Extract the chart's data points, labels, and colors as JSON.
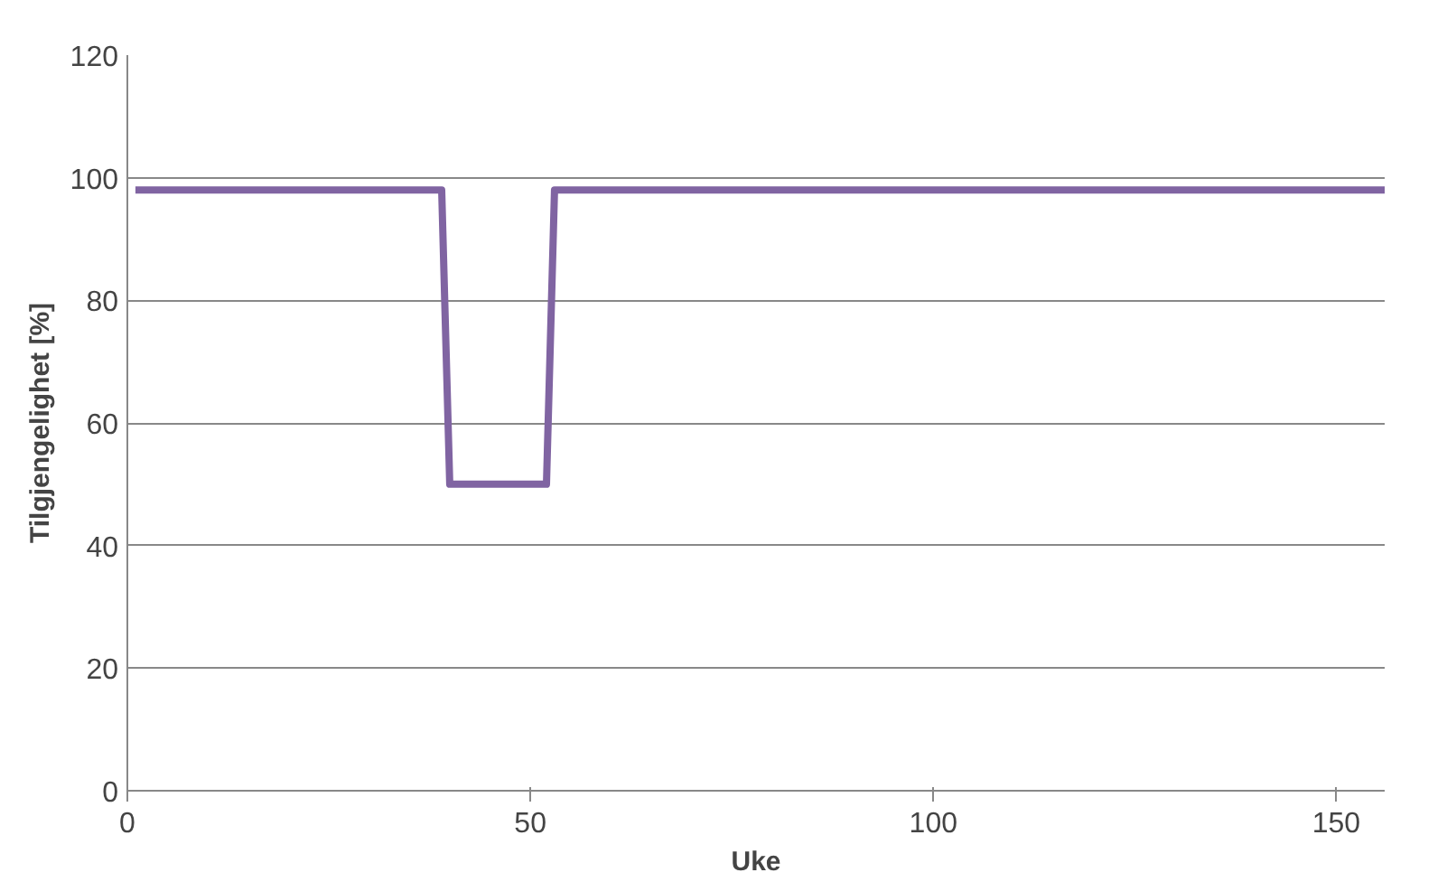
{
  "chart_data": {
    "type": "line",
    "xlabel": "Uke",
    "ylabel": "Tilgjengelighet [%]",
    "series": [
      {
        "color": "#8064a2",
        "x": [
          1,
          39,
          40,
          52,
          53,
          156
        ],
        "values": [
          98,
          98,
          50,
          50,
          98,
          98
        ]
      }
    ],
    "xlim": [
      0,
      156
    ],
    "xticks": [
      0,
      50,
      100,
      150
    ],
    "ylim": [
      0,
      120
    ],
    "yticks": [
      0,
      20,
      40,
      60,
      80,
      100,
      120
    ],
    "grid": "y",
    "marker": "none",
    "line_style": "solid"
  }
}
